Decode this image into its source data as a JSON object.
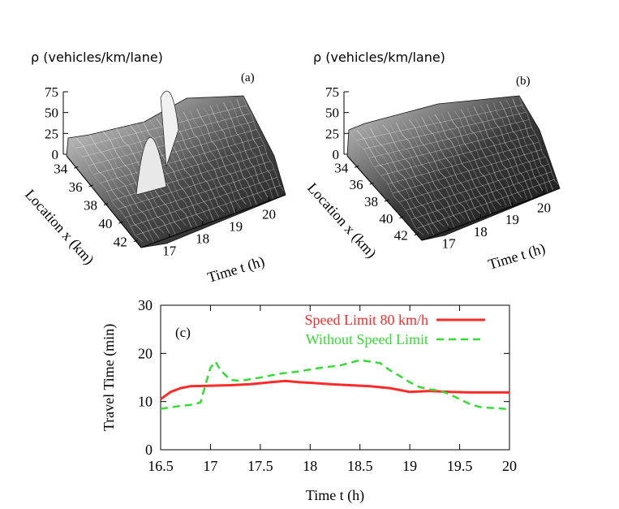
{
  "chart_data": [
    {
      "type": "surface",
      "panel_label": "(a)",
      "zlabel": "ρ  (vehicles/km/lane)",
      "xlabel": "Location x (km)",
      "ylabel": "Time t (h)",
      "z_ticks": [
        "0",
        "25",
        "50",
        "75"
      ],
      "x_ticks": [
        "34",
        "36",
        "38",
        "40",
        "42"
      ],
      "y_ticks": [
        "17",
        "18",
        "19",
        "20"
      ],
      "zlim": [
        0,
        75
      ],
      "xlim": [
        33,
        43
      ],
      "ylim": [
        16.5,
        20
      ],
      "description_values": {
        "peak_density_approx": 75
      }
    },
    {
      "type": "surface",
      "panel_label": "(b)",
      "zlabel": "ρ  (vehicles/km/lane)",
      "xlabel": "Location x (km)",
      "ylabel": "Time t (h)",
      "z_ticks": [
        "0",
        "25",
        "50",
        "75"
      ],
      "x_ticks": [
        "34",
        "36",
        "38",
        "40",
        "42"
      ],
      "y_ticks": [
        "17",
        "18",
        "19",
        "20"
      ],
      "zlim": [
        0,
        75
      ],
      "xlim": [
        33,
        43
      ],
      "ylim": [
        16.5,
        20
      ]
    },
    {
      "type": "line",
      "panel_label": "(c)",
      "xlabel": "Time t (h)",
      "ylabel": "Travel Time (min)",
      "xlim": [
        16.5,
        20
      ],
      "ylim": [
        0,
        30
      ],
      "x_ticks": [
        "16.5",
        "17",
        "17.5",
        "18",
        "18.5",
        "19",
        "19.5",
        "20"
      ],
      "y_ticks": [
        "0",
        "10",
        "20",
        "30"
      ],
      "legend_position": "top-right",
      "series": [
        {
          "name": "Speed Limit 80 km/h",
          "color": "#ff2a2a",
          "dash": "solid",
          "x": [
            16.5,
            16.6,
            16.7,
            16.8,
            17.0,
            17.2,
            17.4,
            17.6,
            17.75,
            17.9,
            18.0,
            18.2,
            18.4,
            18.6,
            18.8,
            19.0,
            19.2,
            19.4,
            19.6,
            19.8,
            20.0
          ],
          "y": [
            10.5,
            12.0,
            12.8,
            13.2,
            13.3,
            13.4,
            13.6,
            14.0,
            14.3,
            14.0,
            13.9,
            13.6,
            13.4,
            13.2,
            12.8,
            12.0,
            12.2,
            12.0,
            11.9,
            11.9,
            11.9
          ]
        },
        {
          "name": "Without Speed Limit",
          "color": "#33dd33",
          "dash": "dashed",
          "x": [
            16.5,
            16.6,
            16.7,
            16.8,
            16.9,
            16.95,
            17.0,
            17.05,
            17.1,
            17.2,
            17.3,
            17.5,
            17.7,
            17.9,
            18.1,
            18.3,
            18.5,
            18.6,
            18.7,
            18.8,
            18.9,
            19.0,
            19.1,
            19.2,
            19.3,
            19.4,
            19.5,
            19.6,
            19.7,
            19.8,
            19.9,
            20.0
          ],
          "y": [
            8.5,
            8.8,
            9.1,
            9.3,
            9.8,
            13.5,
            17.0,
            18.3,
            16.5,
            14.5,
            14.3,
            15.0,
            15.8,
            16.3,
            17.0,
            17.5,
            18.6,
            18.3,
            18.0,
            16.5,
            15.3,
            14.0,
            13.0,
            12.5,
            12.3,
            11.5,
            10.5,
            9.5,
            8.9,
            8.7,
            8.6,
            8.4
          ]
        }
      ]
    }
  ]
}
